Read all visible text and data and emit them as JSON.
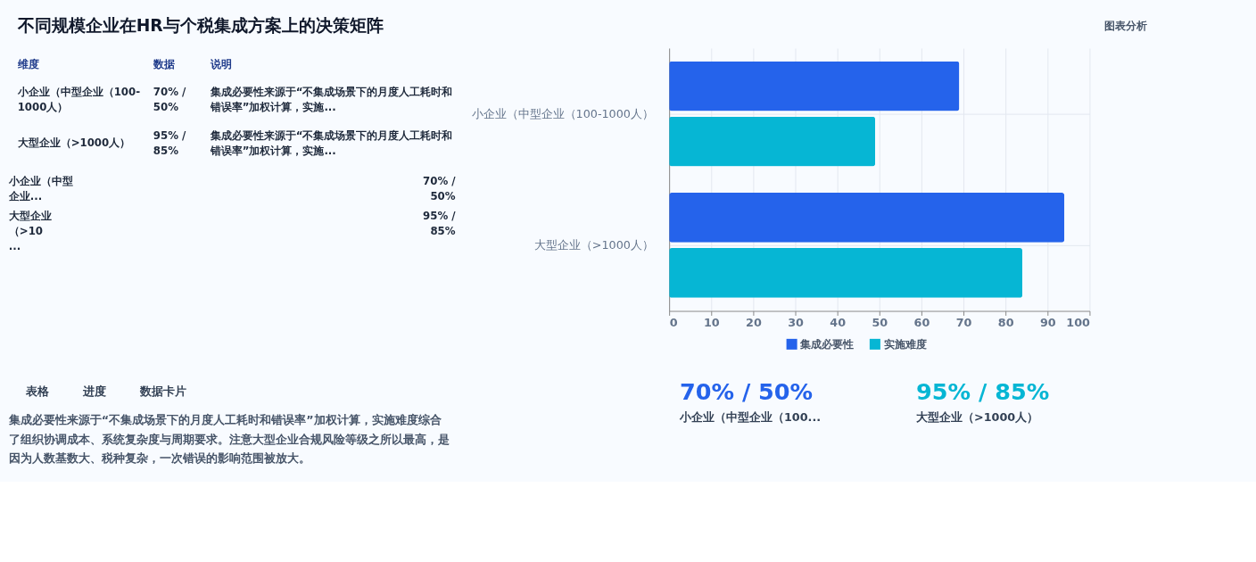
{
  "chart_data": {
    "type": "bar",
    "orientation": "horizontal",
    "title": "不同规模企业在HR与个税集成方案上的决策矩阵",
    "categories": [
      "小企业（中型企业（100-1000人）",
      "大型企业（>1000人）"
    ],
    "series": [
      {
        "name": "集成必要性",
        "color": "#2563eb",
        "values": [
          69,
          94
        ]
      },
      {
        "name": "实施难度",
        "color": "#06b6d4",
        "values": [
          49,
          84
        ]
      }
    ],
    "xlim": [
      0,
      100
    ],
    "xticks": [
      0,
      10,
      20,
      30,
      40,
      50,
      60,
      70,
      80,
      90,
      100
    ],
    "grid": true,
    "legend": "bottom",
    "annotations": [
      "图表分析",
      "维度",
      "数据",
      "说明",
      "小企业（中型企业（100-1000人）",
      "70% / 50%",
      "集成必要性来源于“不集成场景下的月度人工耗时和错误率”加权计算，实施...",
      "大型企业（>1000人）",
      "95% / 85%",
      "集成必要性来源于“不集成场景下的月度人工耗时和错误率”加权计算，实施...",
      "小企业（中型企业...",
      "70% / 50%",
      "大型企业（>10...",
      "95% / 85%",
      "表格",
      "进度",
      "数据卡片",
      "集成必要性来源于“不集成场景下的月度人工耗时和错误率”加权计算，实施难度综合了组织协调成本、系统复杂度与周期要求。注意大型企业合规风险等级之所以最高，是因为人数基数大、税种复杂，一次错误的影响范围被放大。",
      "70% / 50%",
      "小企业（中型企业（100...",
      "95% / 85%",
      "大型企业（>1000人）"
    ]
  }
}
